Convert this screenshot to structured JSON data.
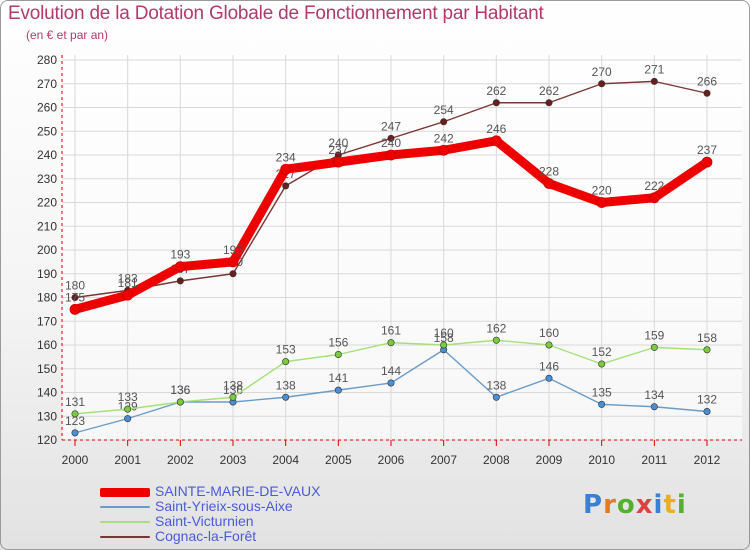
{
  "header": {
    "title": "Evolution de la Dotation Globale de Fonctionnement par Habitant",
    "subtitle": "(en € et par an)"
  },
  "logo": {
    "text": "Proxiti",
    "letter_colors": [
      "#3a7fd0",
      "#e87a1e",
      "#55b030",
      "#e04040",
      "#3a7fd0",
      "#e8b020",
      "#55b030"
    ]
  },
  "colors": {
    "axis": "#d80000",
    "grid": "#d9d9d9",
    "tick_text": "#333333",
    "value_text": "#555555"
  },
  "chart_data": {
    "type": "line",
    "title": "Evolution de la Dotation Globale de Fonctionnement par Habitant",
    "subtitle": "(en € et par an)",
    "x": [
      "2000",
      "2001",
      "2002",
      "2003",
      "2004",
      "2005",
      "2006",
      "2007",
      "2008",
      "2009",
      "2010",
      "2011",
      "2012"
    ],
    "ylim": [
      120,
      280
    ],
    "yticks": [
      120,
      130,
      140,
      150,
      160,
      170,
      180,
      190,
      200,
      210,
      220,
      230,
      240,
      250,
      260,
      270,
      280
    ],
    "grid": true,
    "legend_position": "bottom-left",
    "series": [
      {
        "name": "SAINTE-MARIE-DE-VAUX",
        "color": "#ee0000",
        "emphasis": "thick",
        "values": [
          175,
          181,
          193,
          195,
          234,
          237,
          240,
          242,
          246,
          228,
          220,
          222,
          237
        ]
      },
      {
        "name": "Saint-Yrieix-sous-Aixe",
        "color": "#6a9cc8",
        "marker_color": "#4a8fd4",
        "emphasis": "thin",
        "values": [
          123,
          129,
          136,
          136,
          138,
          141,
          144,
          158,
          138,
          146,
          135,
          134,
          132
        ]
      },
      {
        "name": "Saint-Victurnien",
        "color": "#a6e07a",
        "marker_color": "#7acc3c",
        "emphasis": "thin",
        "values": [
          131,
          133,
          136,
          138,
          153,
          156,
          161,
          160,
          162,
          160,
          152,
          159,
          158
        ]
      },
      {
        "name": "Cognac-la-Forêt",
        "color": "#7a3636",
        "marker_color": "#6a1e1e",
        "emphasis": "thin",
        "values": [
          180,
          183,
          187,
          190,
          227,
          240,
          247,
          254,
          262,
          262,
          270,
          271,
          266
        ]
      }
    ]
  }
}
